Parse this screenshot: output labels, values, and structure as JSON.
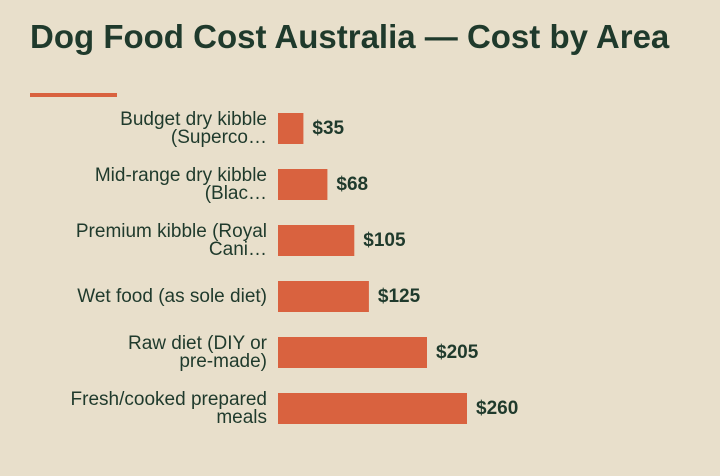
{
  "page": {
    "title": "Dog Food Cost Australia — Cost by Area"
  },
  "colors": {
    "background": "#e8dfcb",
    "bar": "#d9623f",
    "text": "#1f3a2c"
  },
  "chart_data": {
    "type": "bar",
    "orientation": "horizontal",
    "title": "Dog Food Cost Australia — Cost by Area",
    "xlabel": "",
    "ylabel": "",
    "grid": false,
    "legend": "none",
    "xlim": [
      0,
      290
    ],
    "categories": [
      [
        "Budget dry kibble",
        "(Superco…"
      ],
      [
        "Mid-range dry kibble",
        "(Blac…"
      ],
      [
        "Premium kibble (Royal",
        "Cani…"
      ],
      [
        "Wet food (as sole diet)"
      ],
      [
        "Raw diet (DIY or",
        "pre-made)"
      ],
      [
        "Fresh/cooked prepared",
        "meals"
      ]
    ],
    "values": [
      35,
      68,
      105,
      125,
      205,
      260
    ],
    "value_labels": [
      "$35",
      "$68",
      "$105",
      "$125",
      "$205",
      "$260"
    ]
  }
}
